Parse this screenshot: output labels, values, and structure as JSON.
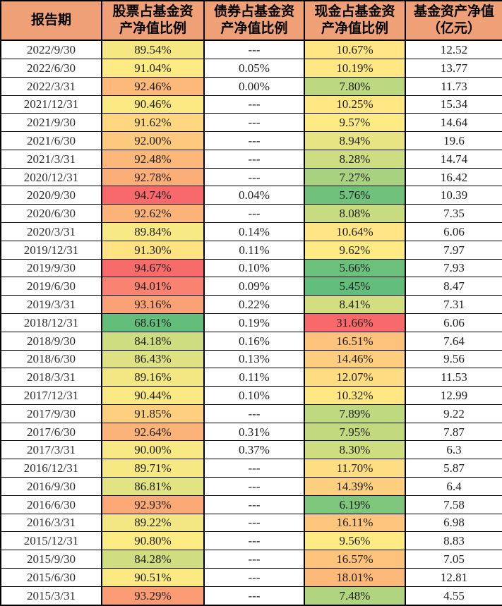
{
  "colors": {
    "header_bg": "#f0a077",
    "border": "#000000",
    "cell_bg": "#ffffff"
  },
  "chart_data": {
    "type": "table",
    "columns": [
      {
        "key": "date",
        "label": "报告期"
      },
      {
        "key": "stock",
        "label": "股票占基金资\n产净值比例"
      },
      {
        "key": "bond",
        "label": "债券占基金资\n产净值比例"
      },
      {
        "key": "cash",
        "label": "现金占基金资\n产净值比例"
      },
      {
        "key": "nav",
        "label": "基金资产净值\n（亿元）"
      }
    ],
    "conditional_format": {
      "heatmap_columns": [
        "stock",
        "cash"
      ],
      "scale": {
        "min_color": "#63be7b",
        "mid_color": "#ffeb84",
        "max_color": "#f8696b",
        "midpoint": "median"
      }
    },
    "rows": [
      {
        "date": "2022/9/30",
        "stock": "89.54%",
        "bond": "---",
        "cash": "10.67%",
        "nav": "12.52"
      },
      {
        "date": "2022/6/30",
        "stock": "91.04%",
        "bond": "0.05%",
        "cash": "10.19%",
        "nav": "13.77"
      },
      {
        "date": "2022/3/31",
        "stock": "92.46%",
        "bond": "0.00%",
        "cash": "7.80%",
        "nav": "11.73"
      },
      {
        "date": "2021/12/31",
        "stock": "90.46%",
        "bond": "---",
        "cash": "10.25%",
        "nav": "15.34"
      },
      {
        "date": "2021/9/30",
        "stock": "91.62%",
        "bond": "---",
        "cash": "9.57%",
        "nav": "14.64"
      },
      {
        "date": "2021/6/30",
        "stock": "92.00%",
        "bond": "---",
        "cash": "8.94%",
        "nav": "19.6"
      },
      {
        "date": "2021/3/31",
        "stock": "92.48%",
        "bond": "---",
        "cash": "8.28%",
        "nav": "14.74"
      },
      {
        "date": "2020/12/31",
        "stock": "92.78%",
        "bond": "---",
        "cash": "7.27%",
        "nav": "16.42"
      },
      {
        "date": "2020/9/30",
        "stock": "94.74%",
        "bond": "0.04%",
        "cash": "5.76%",
        "nav": "10.39"
      },
      {
        "date": "2020/6/30",
        "stock": "92.62%",
        "bond": "---",
        "cash": "8.08%",
        "nav": "7.35"
      },
      {
        "date": "2020/3/31",
        "stock": "89.84%",
        "bond": "0.14%",
        "cash": "10.64%",
        "nav": "6.06"
      },
      {
        "date": "2019/12/31",
        "stock": "91.30%",
        "bond": "0.11%",
        "cash": "9.62%",
        "nav": "7.97"
      },
      {
        "date": "2019/9/30",
        "stock": "94.67%",
        "bond": "0.10%",
        "cash": "5.66%",
        "nav": "7.93"
      },
      {
        "date": "2019/6/30",
        "stock": "94.01%",
        "bond": "0.09%",
        "cash": "5.45%",
        "nav": "8.47"
      },
      {
        "date": "2019/3/31",
        "stock": "93.16%",
        "bond": "0.22%",
        "cash": "8.41%",
        "nav": "7.31"
      },
      {
        "date": "2018/12/31",
        "stock": "68.61%",
        "bond": "0.19%",
        "cash": "31.66%",
        "nav": "6.06"
      },
      {
        "date": "2018/9/30",
        "stock": "84.18%",
        "bond": "0.16%",
        "cash": "16.51%",
        "nav": "7.64"
      },
      {
        "date": "2018/6/30",
        "stock": "86.43%",
        "bond": "0.13%",
        "cash": "14.46%",
        "nav": "9.56"
      },
      {
        "date": "2018/3/31",
        "stock": "89.16%",
        "bond": "0.11%",
        "cash": "12.07%",
        "nav": "11.53"
      },
      {
        "date": "2017/12/31",
        "stock": "90.44%",
        "bond": "0.10%",
        "cash": "10.32%",
        "nav": "12.99"
      },
      {
        "date": "2017/9/30",
        "stock": "91.85%",
        "bond": "---",
        "cash": "7.89%",
        "nav": "9.22"
      },
      {
        "date": "2017/6/30",
        "stock": "92.64%",
        "bond": "0.31%",
        "cash": "7.95%",
        "nav": "7.87"
      },
      {
        "date": "2017/3/31",
        "stock": "90.00%",
        "bond": "0.37%",
        "cash": "8.30%",
        "nav": "6.3"
      },
      {
        "date": "2016/12/31",
        "stock": "89.71%",
        "bond": "---",
        "cash": "11.70%",
        "nav": "5.87"
      },
      {
        "date": "2016/9/30",
        "stock": "86.81%",
        "bond": "---",
        "cash": "14.39%",
        "nav": "6.4"
      },
      {
        "date": "2016/6/30",
        "stock": "92.93%",
        "bond": "---",
        "cash": "6.19%",
        "nav": "7.58"
      },
      {
        "date": "2016/3/31",
        "stock": "89.22%",
        "bond": "---",
        "cash": "16.11%",
        "nav": "6.98"
      },
      {
        "date": "2015/12/31",
        "stock": "90.80%",
        "bond": "---",
        "cash": "9.56%",
        "nav": "8.83"
      },
      {
        "date": "2015/9/30",
        "stock": "84.28%",
        "bond": "---",
        "cash": "16.57%",
        "nav": "7.05"
      },
      {
        "date": "2015/6/30",
        "stock": "90.51%",
        "bond": "---",
        "cash": "18.01%",
        "nav": "12.81"
      },
      {
        "date": "2015/3/31",
        "stock": "93.29%",
        "bond": "---",
        "cash": "7.48%",
        "nav": "4.55"
      }
    ]
  }
}
